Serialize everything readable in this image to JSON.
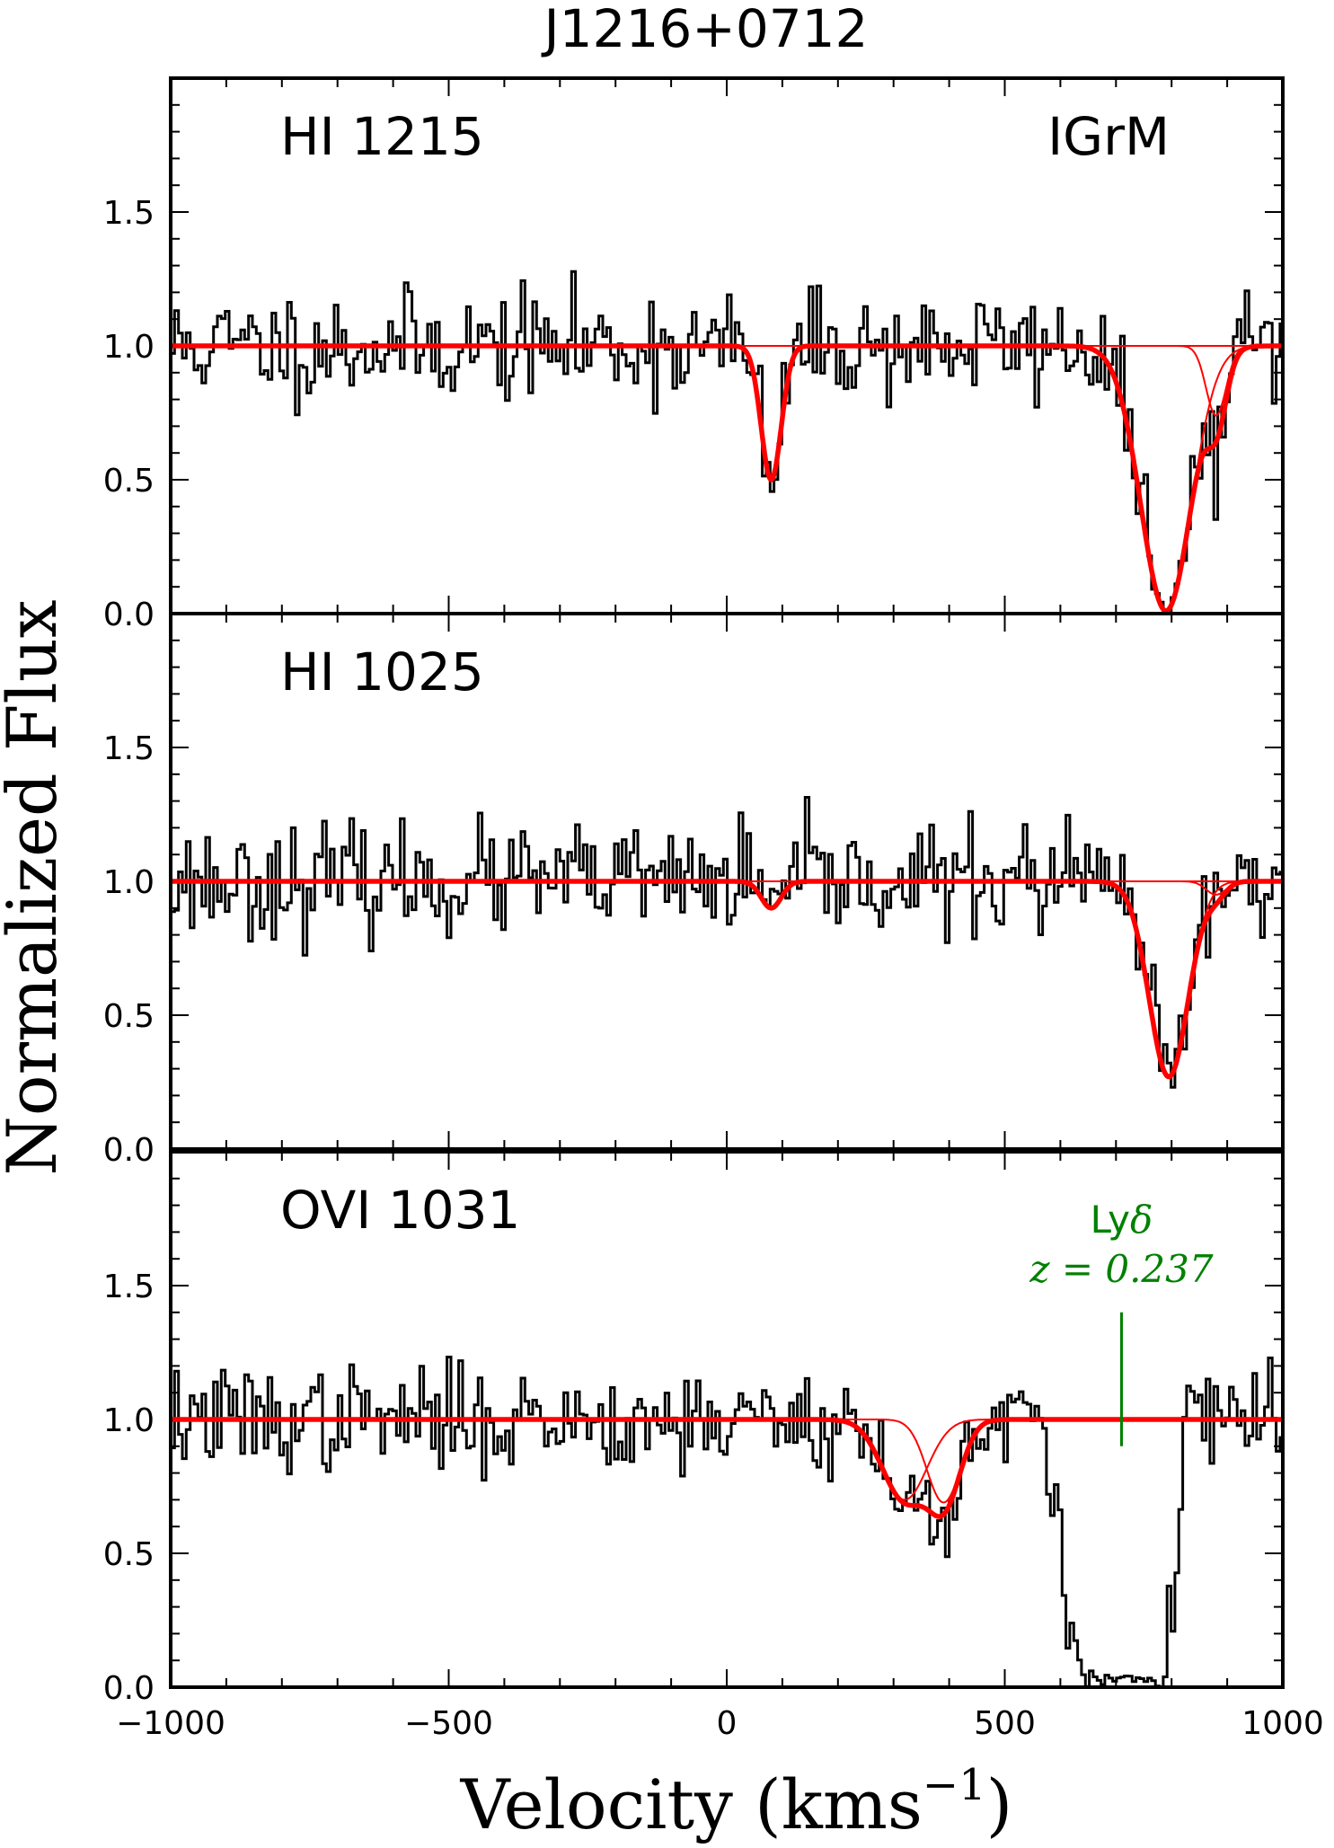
{
  "chart_data": {
    "type": "line",
    "title": "J1216+0712",
    "xlabel": "Velocity (kms",
    "xlabel_sup": "−1",
    "xlabel_close": ")",
    "ylabel": "Normalized Flux",
    "xlim": [
      -1000,
      1000
    ],
    "ylim": [
      0.0,
      2.0
    ],
    "x_ticks": [
      -1000,
      -500,
      0,
      500,
      1000
    ],
    "x_tick_labels": [
      "−1000",
      "−500",
      "0",
      "500",
      "1000"
    ],
    "y_ticks": [
      0.0,
      0.5,
      1.0,
      1.5
    ],
    "y_tick_labels": [
      "0.0",
      "0.5",
      "1.0",
      "1.5"
    ],
    "colors": {
      "data": "#000000",
      "model": "#ff0000",
      "annotation": "#008000"
    },
    "panels": [
      {
        "label": "HI 1215",
        "tag": "IGrM",
        "noise_amplitude": 0.17,
        "seed": 11,
        "components": [
          {
            "v": 80,
            "depth": 0.5,
            "b": 18
          },
          {
            "v": 790,
            "depth": 0.99,
            "b": 45
          },
          {
            "v": 880,
            "depth": 0.26,
            "b": 18
          }
        ]
      },
      {
        "label": "HI 1025",
        "tag": "",
        "noise_amplitude": 0.17,
        "seed": 23,
        "components": [
          {
            "v": 80,
            "depth": 0.1,
            "b": 18
          },
          {
            "v": 795,
            "depth": 0.73,
            "b": 35
          },
          {
            "v": 880,
            "depth": 0.05,
            "b": 18
          }
        ]
      },
      {
        "label": "OVI 1031",
        "tag": "",
        "noise_amplitude": 0.16,
        "seed": 37,
        "components": [
          {
            "v": 320,
            "depth": 0.3,
            "b": 40
          },
          {
            "v": 390,
            "depth": 0.31,
            "b": 30
          }
        ],
        "extra_absorption": {
          "v_from": 560,
          "v_to": 830,
          "comment_free": true
        },
        "annotation": {
          "line1_prefix": "Ly",
          "line1_symbol": "δ",
          "line2": "z = 0.237",
          "v": 710,
          "flux_from": 0.9,
          "flux_to": 1.4
        }
      }
    ]
  }
}
